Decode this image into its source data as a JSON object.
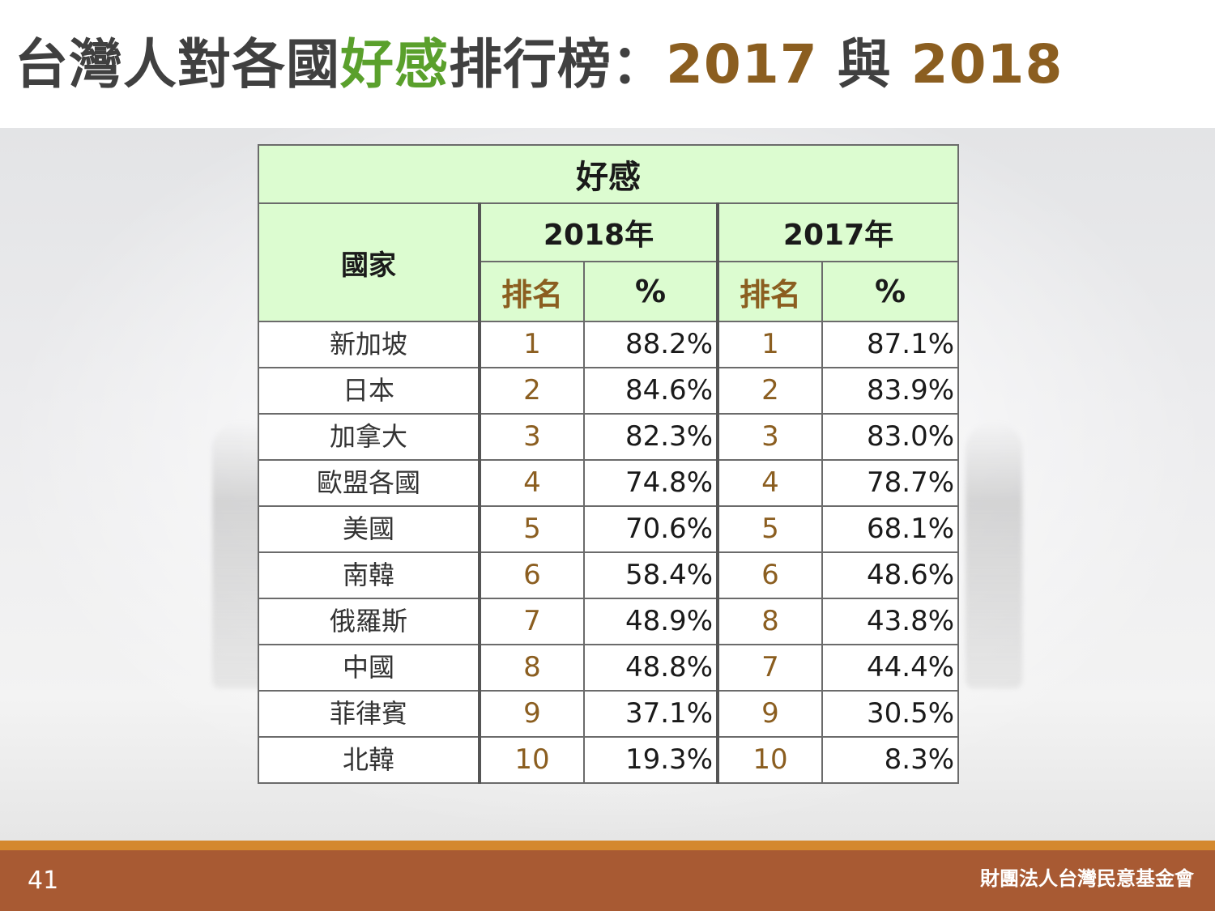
{
  "title": {
    "part1": "台灣人對各國",
    "part2": "好感",
    "part3": "排行榜：",
    "part4": "2017",
    "part5": " 與 ",
    "part6": "2018"
  },
  "table": {
    "main_header": "好感",
    "country_header": "國家",
    "year_2018": "2018年",
    "year_2017": "2017年",
    "rank_label": "排名",
    "pct_label": "%",
    "rows": [
      {
        "country": "新加坡",
        "rank_2018": "1",
        "pct_2018": "88.2%",
        "rank_2017": "1",
        "pct_2017": "87.1%"
      },
      {
        "country": "日本",
        "rank_2018": "2",
        "pct_2018": "84.6%",
        "rank_2017": "2",
        "pct_2017": "83.9%"
      },
      {
        "country": "加拿大",
        "rank_2018": "3",
        "pct_2018": "82.3%",
        "rank_2017": "3",
        "pct_2017": "83.0%"
      },
      {
        "country": "歐盟各國",
        "rank_2018": "4",
        "pct_2018": "74.8%",
        "rank_2017": "4",
        "pct_2017": "78.7%"
      },
      {
        "country": "美國",
        "rank_2018": "5",
        "pct_2018": "70.6%",
        "rank_2017": "5",
        "pct_2017": "68.1%"
      },
      {
        "country": "南韓",
        "rank_2018": "6",
        "pct_2018": "58.4%",
        "rank_2017": "6",
        "pct_2017": "48.6%"
      },
      {
        "country": "俄羅斯",
        "rank_2018": "7",
        "pct_2018": "48.9%",
        "rank_2017": "8",
        "pct_2017": "43.8%"
      },
      {
        "country": "中國",
        "rank_2018": "8",
        "pct_2018": "48.8%",
        "rank_2017": "7",
        "pct_2017": "44.4%"
      },
      {
        "country": "菲律賓",
        "rank_2018": "9",
        "pct_2018": "37.1%",
        "rank_2017": "9",
        "pct_2017": "30.5%"
      },
      {
        "country": "北韓",
        "rank_2018": "10",
        "pct_2018": "19.3%",
        "rank_2017": "10",
        "pct_2017": "8.3%"
      }
    ]
  },
  "footer": {
    "page_number": "41",
    "organization": "財團法人台灣民意基金會"
  },
  "colors": {
    "title_text": "#404040",
    "title_green": "#5aa02c",
    "title_brown": "#8b5e20",
    "header_bg": "#dcfcd0",
    "footer_bg": "#a85a33",
    "footer_stripe": "#d4882e"
  }
}
